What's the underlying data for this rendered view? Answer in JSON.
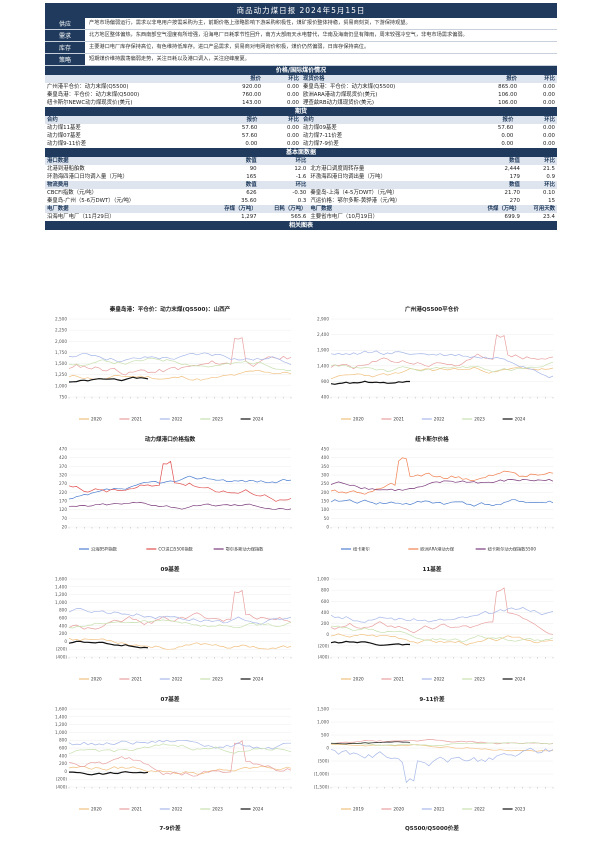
{
  "header": {
    "title": "商品动力煤日报 2024年5月15日"
  },
  "sections": [
    {
      "label": "供应",
      "text": "产地市场偏弱运行，需求以非电用户按需采购为主，前期价格上涨略影响下游采购积极性，煤矿报价整体持稳，贸易商刻货，下游保持观望。"
    },
    {
      "label": "需求",
      "text": "北方地区整体偏热，东西南部空气湿度有所增强，沿海电厂日耗季节性回升，南方大部雨天水电替代，华南及海南仍显有降雨，周末较强冷空气，非电市场需求偏弱。"
    },
    {
      "label": "库存",
      "text": "主要港口电厂库存保持高位，有色维持低库存。进口产品需求，贸易商对电网询价积极，煤价仍然偏弱，日库存保持高位。"
    },
    {
      "label": "策略",
      "text": "短期煤价维持震荡偏弱走势，关注日耗以及港口调入，关注迎峰度夏。"
    }
  ],
  "tables": {
    "spot_band": "价格/国际煤价情况",
    "spot_header_left": [
      "",
      "报价",
      "环比"
    ],
    "spot_header_right": [
      "现货价格",
      "报价",
      "环比"
    ],
    "spot_rows": [
      [
        "广州港平仓价：动力末煤(Q5500)",
        "920.00",
        "0.00",
        "秦皇岛港：平仓价：动力末煤(Q5500)",
        "865.00",
        "0.00"
      ],
      [
        "秦皇岛港：平仓价：动力末煤(Q5000)",
        "760.00",
        "0.00",
        "欧洲ARA港动力煤现货价(美元)",
        "106.00",
        "0.00"
      ],
      [
        "纽卡斯尔NEWC动力煤现货价(美元)",
        "143.00",
        "0.00",
        "理查兹RB动力煤现货价(美元)",
        "106.00",
        "0.00"
      ]
    ],
    "futures_band": "期货",
    "futures_header": [
      "合约",
      "报价",
      "环比",
      "合约",
      "报价",
      "环比"
    ],
    "futures_rows": [
      [
        "动力煤11基差",
        "57.60",
        "0.00",
        "动力煤09基差",
        "57.60",
        "0.00"
      ],
      [
        "动力煤07基差",
        "57.60",
        "0.00",
        "动力煤7-11价差",
        "0.00",
        "0.00"
      ],
      [
        "动力煤9-11价差",
        "0.00",
        "0.00",
        "动力煤7-9价差",
        "0.00",
        "0.00"
      ]
    ],
    "fund_band": "基本面数据",
    "port_header": [
      "港口数据",
      "数值",
      "环比",
      "",
      "数值",
      "环比"
    ],
    "port_rows": [
      [
        "北港到港船舶数",
        "90",
        "12.0",
        "北方港口调度周转存量",
        "2,444",
        "21.5"
      ],
      [
        "环渤海四港口日均调入量（万吨）",
        "165",
        "-1.6",
        "环渤海四港日均调出量（万吨）",
        "179",
        "0.9"
      ]
    ],
    "logistics_header": [
      "物流费用",
      "数值",
      "环比",
      "",
      "数值",
      "环比"
    ],
    "logistics_rows": [
      [
        "CBCFI指数（元/吨）",
        "626",
        "-0.30",
        "秦皇岛-上海（4-5万DWT）（元/吨）",
        "21.70",
        "0.10"
      ],
      [
        "秦皇岛-广州（5-6万DWT）（元/吨）",
        "35.60",
        "0.3",
        "汽运价格：鄂尔多斯-黄骅港（元/吨）",
        "270",
        "15"
      ]
    ],
    "power_header": [
      "电厂数据",
      "存煤（万吨）",
      "日耗（万吨）",
      "电厂数据",
      "供煤（万吨）",
      "可用天数"
    ],
    "power_rows": [
      [
        "沿海电厂电厂（11月29日）",
        "1,297",
        "565.6",
        "主要省市电厂（10月19日）",
        "699.9",
        "23.4"
      ]
    ],
    "charts_band": "相关图表"
  },
  "charts": {
    "c1_title": "秦皇岛港：平仓价：动力末煤(Q5500)：山西产",
    "c2_title": "广州港Q5500平仓价",
    "c3_title": "动力煤港口价格指数",
    "c4_title": "纽卡斯尔价格",
    "c5_title": "09基差",
    "c6_title": "11基差",
    "c7_title": "07基差",
    "c8_title": "9-11价差",
    "c9_title": "7-9价差",
    "c10_title": "Q5500/Q5000价差",
    "years_legend": [
      "2020",
      "2021",
      "2022",
      "2023",
      "2024"
    ],
    "c3_legend": [
      "沿海BSPI指数",
      "CCI进口5500指数",
      "鄂尔多斯动力煤指数"
    ],
    "c4_legend": [
      "纽卡斯尔",
      "欧洲ARA港动力煤",
      "纽卡斯尔动力煤指数5500"
    ],
    "c1_yticks": [
      "2,500",
      "2,250",
      "2,000",
      "1,750",
      "1,500",
      "1,250",
      "1,000",
      "750"
    ],
    "c2_yticks": [
      "2,900",
      "2,400",
      "1,900",
      "1,400",
      "900",
      "400"
    ],
    "c3_yticks": [
      "470",
      "420",
      "370",
      "320",
      "270",
      "220",
      "170",
      "120",
      "70",
      "20"
    ],
    "c4_yticks": [
      "450",
      "400",
      "350",
      "300",
      "250",
      "200",
      "150",
      "100",
      "50",
      "0"
    ],
    "c5_yticks": [
      "1,600",
      "1,400",
      "1,200",
      "1,000",
      "800",
      "600",
      "400",
      "200",
      "0",
      "(200)",
      "(400)"
    ],
    "c6_yticks": [
      "1,000",
      "800",
      "600",
      "400",
      "200",
      "0",
      "(200)",
      "(400)"
    ],
    "c7_yticks": [
      "1,600",
      "1,400",
      "1,200",
      "1,000",
      "800",
      "600",
      "400",
      "200",
      "0",
      "(200)",
      "(400)"
    ],
    "c8_yticks": [
      "1,500",
      "1,000",
      "500",
      "0",
      "(500)",
      "(1,000)",
      "(1,500)"
    ],
    "years_legend_c8": [
      "2019",
      "2020",
      "2021",
      "2022",
      "2023"
    ],
    "series_colors": {
      "y2020": "#f0c080",
      "y2021": "#e8a0a0",
      "y2022": "#a8b8e8",
      "y2023": "#c8e0b0",
      "y2024": "#111111",
      "accent1": "#e05050",
      "accent2": "#5080d0",
      "accent3": "#f08050"
    }
  }
}
